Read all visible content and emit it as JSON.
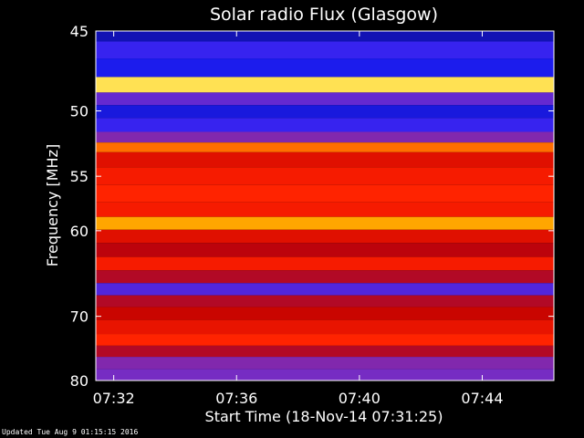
{
  "chart_data": {
    "type": "heatmap",
    "title": "Solar radio Flux (Glasgow)",
    "xlabel": "Start Time (18-Nov-14 07:31:25)",
    "ylabel": "Frequency [MHz]",
    "x_ticks": [
      "07:32",
      "07:36",
      "07:40",
      "07:44"
    ],
    "y_ticks": [
      "45",
      "50",
      "55",
      "60",
      "70",
      "80"
    ],
    "y_scale": "reciprocal",
    "xlim": [
      "07:31:25",
      "07:46:20"
    ],
    "ylim": [
      80,
      45
    ],
    "colormap": [
      "#0a0a8c",
      "#2020ff",
      "#7a2cc0",
      "#c00000",
      "#ff2000",
      "#ff5a00",
      "#ffaa00",
      "#ffff80"
    ],
    "bands": [
      {
        "f": 45.2,
        "level": 0.05
      },
      {
        "f": 46.0,
        "level": 0.18
      },
      {
        "f": 47.2,
        "level": 0.12
      },
      {
        "f": 48.3,
        "level": 0.95
      },
      {
        "f": 49.2,
        "level": 0.25
      },
      {
        "f": 50.0,
        "level": 0.1
      },
      {
        "f": 51.0,
        "level": 0.18
      },
      {
        "f": 52.0,
        "level": 0.3
      },
      {
        "f": 52.6,
        "level": 0.75
      },
      {
        "f": 53.5,
        "level": 0.5
      },
      {
        "f": 55.0,
        "level": 0.55
      },
      {
        "f": 56.5,
        "level": 0.58
      },
      {
        "f": 58.0,
        "level": 0.55
      },
      {
        "f": 59.3,
        "level": 0.85
      },
      {
        "f": 60.5,
        "level": 0.5
      },
      {
        "f": 62.0,
        "level": 0.42
      },
      {
        "f": 63.5,
        "level": 0.55
      },
      {
        "f": 65.0,
        "level": 0.4
      },
      {
        "f": 66.5,
        "level": 0.22
      },
      {
        "f": 68.0,
        "level": 0.4
      },
      {
        "f": 69.5,
        "level": 0.45
      },
      {
        "f": 71.5,
        "level": 0.52
      },
      {
        "f": 73.5,
        "level": 0.58
      },
      {
        "f": 75.0,
        "level": 0.4
      },
      {
        "f": 77.0,
        "level": 0.3
      },
      {
        "f": 79.0,
        "level": 0.28
      }
    ]
  },
  "footer": "Updated Tue Aug  9 01:15:15 2016"
}
